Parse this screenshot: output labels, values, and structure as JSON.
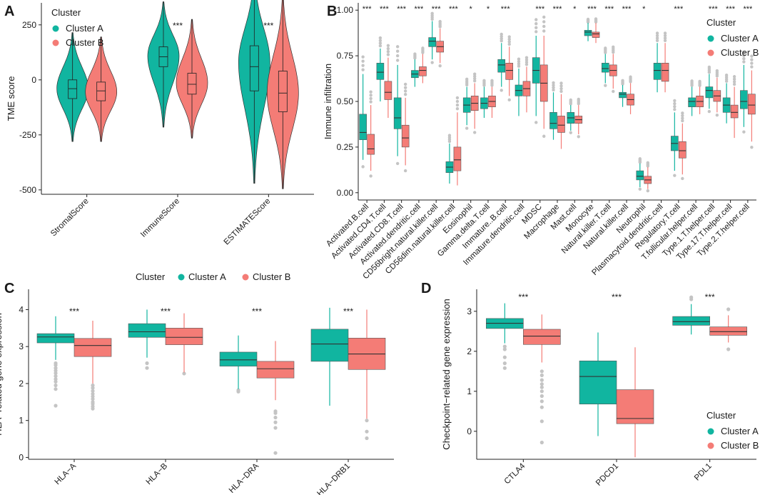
{
  "colors": {
    "a": "#11b5a0",
    "b": "#f47c76",
    "outlier": "#c4c4c4",
    "line": "#222222"
  },
  "chart_data": [
    {
      "panel_label": "A",
      "type": "violin",
      "title": "",
      "ylabel": "TME score",
      "xlabel": "",
      "ylim": [
        -520,
        350
      ],
      "yticks": [
        -500,
        -250,
        0,
        250,
        500
      ],
      "legend": {
        "title": "Cluster",
        "entries": [
          "Cluster A",
          "Cluster B"
        ],
        "placement": "top-left"
      },
      "categories": [
        "StromalScore",
        "ImmuneScore",
        "ESTIMATEScore"
      ],
      "significance": [
        "",
        "***",
        "***"
      ],
      "series": [
        {
          "name": "Cluster A",
          "violins": [
            {
              "min": -280,
              "q1": -85,
              "median": -40,
              "q3": 0,
              "max": 215,
              "mode": -40
            },
            {
              "min": -215,
              "q1": 60,
              "median": 105,
              "q3": 150,
              "max": 355,
              "mode": 110
            },
            {
              "min": -470,
              "q1": -50,
              "median": 60,
              "q3": 155,
              "max": 480,
              "mode": 80
            }
          ]
        },
        {
          "name": "Cluster B",
          "violins": [
            {
              "min": -280,
              "q1": -95,
              "median": -50,
              "q3": -10,
              "max": 195,
              "mode": -55
            },
            {
              "min": -265,
              "q1": -65,
              "median": -20,
              "q3": 30,
              "max": 275,
              "mode": -15
            },
            {
              "min": -495,
              "q1": -145,
              "median": -60,
              "q3": 40,
              "max": 385,
              "mode": -60
            }
          ]
        }
      ]
    },
    {
      "panel_label": "B",
      "type": "box",
      "ylabel": "Immune infiltration",
      "xlabel": "",
      "ylim": [
        -0.04,
        1.04
      ],
      "yticks": [
        0.0,
        0.25,
        0.5,
        0.75,
        1.0
      ],
      "ytick_labels": [
        "0.00",
        "0.25",
        "0.50",
        "0.75",
        "1.00"
      ],
      "legend": {
        "title": "Cluster",
        "entries": [
          "Cluster A",
          "Cluster B"
        ],
        "placement": "top-right"
      },
      "categories": [
        "Activated.B.cell",
        "Activated.CD4.T.cell",
        "Activated.CD8.T.cell",
        "Activated.dendritic.cell",
        "CD56bright.natural.killer.cell",
        "CD56dim.natural.killer.cell",
        "Eosinophil",
        "Gamma.delta.T.cell",
        "Immature..B.cell",
        "Immature.dendritic.cell",
        "MDSC",
        "Macrophage",
        "Mast.cell",
        "Monocyte",
        "Natural.killer.T.cell",
        "Natural.killer.cell",
        "Neutrophil",
        "Plasmacytoid.dendritic.cell",
        "Regulatory.T.cell",
        "T.follicular.helper.cell",
        "Type.1.T.helper.cell",
        "Type.17.T.helper.cell",
        "Type.2.T.helper.cell"
      ],
      "significance": [
        "***",
        "***",
        "***",
        "***",
        "***",
        "***",
        "*",
        "*",
        "***",
        "",
        "***",
        "***",
        "*",
        "***",
        "***",
        "***",
        "*",
        "",
        "***",
        "",
        "***",
        "***",
        "***"
      ],
      "series": [
        {
          "name": "Cluster A",
          "boxes": [
            [
              0.18,
              0.29,
              0.33,
              0.43,
              0.65
            ],
            [
              0.5,
              0.62,
              0.66,
              0.71,
              0.79
            ],
            [
              0.2,
              0.35,
              0.41,
              0.52,
              0.7
            ],
            [
              0.58,
              0.63,
              0.65,
              0.67,
              0.73
            ],
            [
              0.73,
              0.8,
              0.83,
              0.85,
              0.94
            ],
            [
              0.05,
              0.11,
              0.14,
              0.17,
              0.27
            ],
            [
              0.37,
              0.44,
              0.48,
              0.52,
              0.58
            ],
            [
              0.41,
              0.46,
              0.49,
              0.52,
              0.58
            ],
            [
              0.58,
              0.66,
              0.7,
              0.73,
              0.82
            ],
            [
              0.42,
              0.53,
              0.56,
              0.59,
              0.68
            ],
            [
              0.42,
              0.6,
              0.67,
              0.74,
              0.86
            ],
            [
              0.29,
              0.35,
              0.38,
              0.44,
              0.55
            ],
            [
              0.34,
              0.38,
              0.41,
              0.44,
              0.48
            ],
            [
              0.83,
              0.86,
              0.88,
              0.89,
              0.93
            ],
            [
              0.6,
              0.66,
              0.68,
              0.71,
              0.76
            ],
            [
              0.47,
              0.52,
              0.54,
              0.55,
              0.59
            ],
            [
              0.03,
              0.07,
              0.09,
              0.12,
              0.16
            ],
            [
              0.55,
              0.62,
              0.67,
              0.71,
              0.82
            ],
            [
              0.12,
              0.23,
              0.27,
              0.31,
              0.44
            ],
            [
              0.42,
              0.47,
              0.5,
              0.52,
              0.58
            ],
            [
              0.46,
              0.52,
              0.56,
              0.58,
              0.65
            ],
            [
              0.38,
              0.44,
              0.48,
              0.52,
              0.6
            ],
            [
              0.36,
              0.46,
              0.5,
              0.56,
              0.7
            ]
          ]
        },
        {
          "name": "Cluster B",
          "boxes": [
            [
              0.12,
              0.21,
              0.24,
              0.32,
              0.48
            ],
            [
              0.41,
              0.51,
              0.55,
              0.61,
              0.74
            ],
            [
              0.15,
              0.25,
              0.3,
              0.37,
              0.52
            ],
            [
              0.6,
              0.64,
              0.67,
              0.69,
              0.76
            ],
            [
              0.71,
              0.77,
              0.8,
              0.83,
              0.9
            ],
            [
              0.04,
              0.12,
              0.18,
              0.25,
              0.44
            ],
            [
              0.35,
              0.45,
              0.49,
              0.53,
              0.6
            ],
            [
              0.41,
              0.47,
              0.5,
              0.53,
              0.58
            ],
            [
              0.53,
              0.62,
              0.67,
              0.71,
              0.8
            ],
            [
              0.44,
              0.53,
              0.57,
              0.61,
              0.69
            ],
            [
              0.35,
              0.5,
              0.6,
              0.7,
              0.86
            ],
            [
              0.24,
              0.33,
              0.37,
              0.42,
              0.54
            ],
            [
              0.32,
              0.38,
              0.4,
              0.42,
              0.48
            ],
            [
              0.82,
              0.85,
              0.87,
              0.88,
              0.93
            ],
            [
              0.57,
              0.64,
              0.67,
              0.7,
              0.76
            ],
            [
              0.43,
              0.48,
              0.51,
              0.54,
              0.6
            ],
            [
              0.02,
              0.05,
              0.07,
              0.09,
              0.14
            ],
            [
              0.55,
              0.61,
              0.67,
              0.71,
              0.82
            ],
            [
              0.1,
              0.19,
              0.23,
              0.28,
              0.38
            ],
            [
              0.43,
              0.47,
              0.5,
              0.53,
              0.58
            ],
            [
              0.44,
              0.5,
              0.53,
              0.56,
              0.63
            ],
            [
              0.3,
              0.41,
              0.44,
              0.48,
              0.58
            ],
            [
              0.28,
              0.43,
              0.48,
              0.54,
              0.67
            ]
          ]
        }
      ]
    },
    {
      "panel_label": "C",
      "type": "box",
      "ylabel": "HLA−related gene expression",
      "xlabel": "",
      "ylim": [
        -0.05,
        4.55
      ],
      "yticks": [
        0,
        1,
        2,
        3,
        4
      ],
      "legend": {
        "title": "Cluster",
        "entries": [
          "Cluster A",
          "Cluster B"
        ],
        "placement": "top"
      },
      "categories": [
        "HLA−A",
        "HLA−B",
        "HLA−DRA",
        "HLA−DRB1"
      ],
      "significance": [
        "***",
        "***",
        "***",
        "***"
      ],
      "series": [
        {
          "name": "Cluster A",
          "boxes": [
            [
              2.64,
              3.1,
              3.26,
              3.35,
              3.82
            ],
            [
              2.7,
              3.25,
              3.4,
              3.62,
              4.0
            ],
            [
              1.85,
              2.47,
              2.64,
              2.85,
              3.3
            ],
            [
              1.4,
              2.6,
              3.07,
              3.47,
              4.05
            ]
          ]
        },
        {
          "name": "Cluster B",
          "boxes": [
            [
              2.0,
              2.73,
              3.03,
              3.22,
              3.7
            ],
            [
              2.3,
              3.05,
              3.25,
              3.5,
              3.9
            ],
            [
              1.55,
              2.15,
              2.4,
              2.6,
              3.15
            ],
            [
              1.05,
              2.38,
              2.8,
              3.23,
              4.0
            ]
          ]
        }
      ],
      "outliers_a": [
        [
          0,
          1.4
        ],
        [
          0,
          1.85
        ],
        [
          0,
          1.95
        ],
        [
          0,
          2.05
        ],
        [
          0,
          2.12
        ],
        [
          0,
          2.2
        ],
        [
          0,
          2.28
        ],
        [
          0,
          2.35
        ],
        [
          0,
          2.42
        ],
        [
          0,
          2.5
        ],
        [
          0,
          2.55
        ],
        [
          1,
          2.42
        ],
        [
          1,
          2.55
        ],
        [
          2,
          1.78
        ],
        [
          2,
          1.82
        ]
      ],
      "outliers_b": [
        [
          0,
          1.32
        ],
        [
          0,
          1.38
        ],
        [
          0,
          1.45
        ],
        [
          0,
          1.5
        ],
        [
          0,
          1.58
        ],
        [
          0,
          1.65
        ],
        [
          0,
          1.72
        ],
        [
          0,
          1.8
        ],
        [
          0,
          1.88
        ],
        [
          0,
          1.95
        ],
        [
          1,
          2.27
        ],
        [
          2,
          0.12
        ],
        [
          2,
          0.8
        ],
        [
          2,
          0.95
        ],
        [
          2,
          1.08
        ],
        [
          2,
          1.2
        ],
        [
          2,
          1.25
        ],
        [
          3,
          0.52
        ],
        [
          3,
          0.7
        ],
        [
          3,
          1.0
        ]
      ]
    },
    {
      "panel_label": "D",
      "type": "box",
      "ylabel": "Checkpoint−related gene expression",
      "xlabel": "",
      "ylim": [
        -0.7,
        3.55
      ],
      "yticks": [
        0,
        1,
        2,
        3
      ],
      "legend": {
        "title": "Cluster",
        "entries": [
          "Cluster A",
          "Cluster B"
        ],
        "placement": "bottom-right"
      },
      "categories": [
        "CTLA4",
        "PDCD1",
        "PDL1"
      ],
      "significance": [
        "***",
        "***",
        "***"
      ],
      "series": [
        {
          "name": "Cluster A",
          "boxes": [
            [
              2.2,
              2.57,
              2.7,
              2.82,
              3.2
            ],
            [
              -0.12,
              0.68,
              1.37,
              1.76,
              2.47
            ],
            [
              2.42,
              2.65,
              2.74,
              2.87,
              3.18
            ]
          ]
        },
        {
          "name": "Cluster B",
          "boxes": [
            [
              1.72,
              2.17,
              2.38,
              2.55,
              2.92
            ],
            [
              -0.65,
              0.19,
              0.32,
              1.04,
              2.1
            ],
            [
              2.22,
              2.4,
              2.49,
              2.61,
              2.9
            ]
          ]
        }
      ],
      "outliers_a": [
        [
          0,
          1.58
        ],
        [
          0,
          1.7
        ],
        [
          0,
          1.85
        ],
        [
          0,
          2.05
        ],
        [
          0,
          2.12
        ],
        [
          2,
          3.3
        ],
        [
          2,
          3.35
        ]
      ],
      "outliers_b": [
        [
          0,
          -0.28
        ],
        [
          0,
          0.25
        ],
        [
          0,
          0.6
        ],
        [
          0,
          0.75
        ],
        [
          0,
          0.88
        ],
        [
          0,
          1.0
        ],
        [
          0,
          1.1
        ],
        [
          0,
          1.18
        ],
        [
          0,
          1.28
        ],
        [
          0,
          1.4
        ],
        [
          0,
          1.5
        ],
        [
          2,
          2.05
        ],
        [
          2,
          3.05
        ]
      ]
    }
  ]
}
